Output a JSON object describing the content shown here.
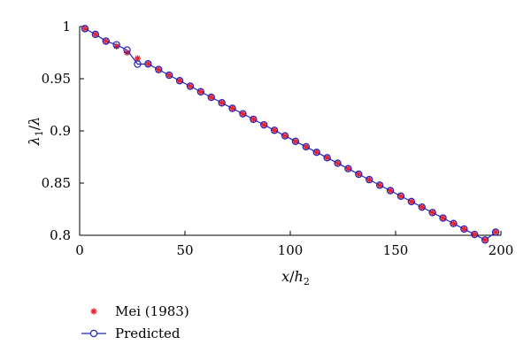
{
  "chart_data": {
    "type": "line",
    "xlabel_main": "x",
    "xlabel_slash": "/",
    "xlabel_sub_var": "h",
    "xlabel_sub": "2",
    "ylabel_main": "λ",
    "ylabel_sub": "1",
    "ylabel_slash": "/",
    "ylabel_den": "λ",
    "xlim": [
      0,
      200
    ],
    "ylim": [
      0.8,
      1.0
    ],
    "xticks": [
      0,
      50,
      100,
      150,
      200
    ],
    "xtick_labels": [
      "0",
      "50",
      "100",
      "150",
      "200"
    ],
    "yticks": [
      0.8,
      0.85,
      0.9,
      0.95,
      1.0
    ],
    "ytick_labels": [
      "0.8",
      "0.85",
      "0.9",
      "0.95",
      "1"
    ],
    "grid": false,
    "legend_position": "bottom-left",
    "series": [
      {
        "name": "Mei (1983)",
        "marker": "asterisk",
        "color": "#e8242a",
        "x": [
          2.5,
          7.5,
          12.5,
          17.5,
          22.5,
          27.5,
          32.5,
          37.5,
          42.5,
          47.5,
          52.5,
          57.5,
          62.5,
          67.5,
          72.5,
          77.5,
          82.5,
          87.5,
          92.5,
          97.5,
          102.5,
          107.5,
          112.5,
          117.5,
          122.5,
          127.5,
          132.5,
          137.5,
          142.5,
          147.5,
          152.5,
          157.5,
          162.5,
          167.5,
          172.5,
          177.5,
          182.5,
          187.5,
          192.5,
          197.5
        ],
        "y": [
          0.998,
          0.9925,
          0.986,
          0.981,
          0.975,
          0.9695,
          0.9642,
          0.9588,
          0.9534,
          0.9481,
          0.9428,
          0.9375,
          0.9322,
          0.9269,
          0.9216,
          0.9164,
          0.9111,
          0.9058,
          0.9006,
          0.8953,
          0.89,
          0.8848,
          0.8795,
          0.8743,
          0.869,
          0.8638,
          0.8585,
          0.8533,
          0.848,
          0.8428,
          0.8375,
          0.8323,
          0.827,
          0.8218,
          0.8165,
          0.8113,
          0.806,
          0.8008,
          0.7955,
          0.803
        ]
      },
      {
        "name": "Predicted",
        "marker": "circle-line",
        "color": "#2323b8",
        "x": [
          2.5,
          7.5,
          12.5,
          17.5,
          22.5,
          27.5,
          32.5,
          37.5,
          42.5,
          47.5,
          52.5,
          57.5,
          62.5,
          67.5,
          72.5,
          77.5,
          82.5,
          87.5,
          92.5,
          97.5,
          102.5,
          107.5,
          112.5,
          117.5,
          122.5,
          127.5,
          132.5,
          137.5,
          142.5,
          147.5,
          152.5,
          157.5,
          162.5,
          167.5,
          172.5,
          177.5,
          182.5,
          187.5,
          192.5,
          197.5
        ],
        "y": [
          0.998,
          0.9925,
          0.986,
          0.9825,
          0.9775,
          0.964,
          0.9642,
          0.9588,
          0.9534,
          0.9481,
          0.9428,
          0.9375,
          0.9322,
          0.9269,
          0.9216,
          0.9164,
          0.9111,
          0.9058,
          0.9006,
          0.8953,
          0.89,
          0.8848,
          0.8795,
          0.8743,
          0.869,
          0.8638,
          0.8585,
          0.8533,
          0.848,
          0.8428,
          0.8375,
          0.8323,
          0.827,
          0.8218,
          0.8165,
          0.8113,
          0.806,
          0.8008,
          0.7955,
          0.803
        ]
      }
    ]
  }
}
